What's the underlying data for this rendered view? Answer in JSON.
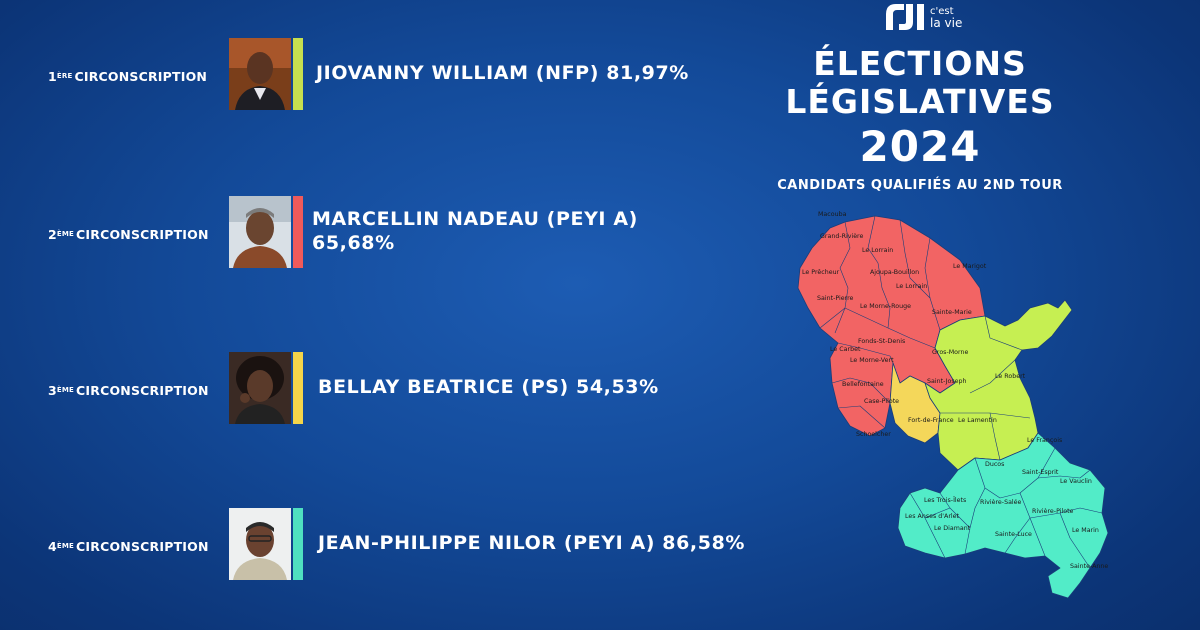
{
  "logo": {
    "brand_line1": "c'est",
    "brand_line2": "la vie"
  },
  "header": {
    "title_line1": "ÉLECTIONS",
    "title_line2": "LÉGISLATIVES",
    "year": "2024",
    "subtitle": "CANDIDATS QUALIFIÉS AU 2ND TOUR"
  },
  "districts": [
    {
      "num": "1",
      "sup": "ÈRE",
      "label": "CIRCONSCRIPTION",
      "line1": "JIOVANNY WILLIAM (NFP) 81,97%",
      "line2": "",
      "color": "#c6df4f"
    },
    {
      "num": "2",
      "sup": "ÈME",
      "label": "CIRCONSCRIPTION",
      "line1": "MARCELLIN NADEAU (PEYI A)",
      "line2": "65,68%",
      "color": "#ef5a5a"
    },
    {
      "num": "3",
      "sup": "ÈME",
      "label": "CIRCONSCRIPTION",
      "line1": "BELLAY BEATRICE (PS) 54,53%",
      "line2": "",
      "color": "#f4d54a"
    },
    {
      "num": "4",
      "sup": "ÈME",
      "label": "CIRCONSCRIPTION",
      "line1": "JEAN-PHILIPPE NILOR (PEYI A) 86,58%",
      "line2": "",
      "color": "#4fe0c0"
    }
  ],
  "map": {
    "colors": {
      "d1": "#c6ef52",
      "d2": "#f26464",
      "d3": "#f4d75a",
      "d4": "#52ecc8"
    },
    "communes": [
      "Macouba",
      "Grand-Rivière",
      "Le Lorrain",
      "Le Marigot",
      "Le Prêcheur",
      "Ajoupa-Bouillon",
      "Le Lorrain",
      "Saint-Pierre",
      "Le Morne-Rouge",
      "Sainte-Marie",
      "Fonds-St-Denis",
      "Le Carbet",
      "Gros-Morne",
      "Le Morne-Vert",
      "Le Robert",
      "Bellefontaine",
      "Saint-Joseph",
      "Case-Pilote",
      "Fort-de-France",
      "Le Lamentin",
      "Schoelcher",
      "Le François",
      "Ducos",
      "Saint-Esprit",
      "Le Vauclin",
      "Les Trois-Îlets",
      "Rivière-Salée",
      "Les Anses d'Arlet",
      "Rivière-Pilote",
      "Le Diamant",
      "Sainte-Luce",
      "Le Marin",
      "Sainte-Anne"
    ]
  }
}
